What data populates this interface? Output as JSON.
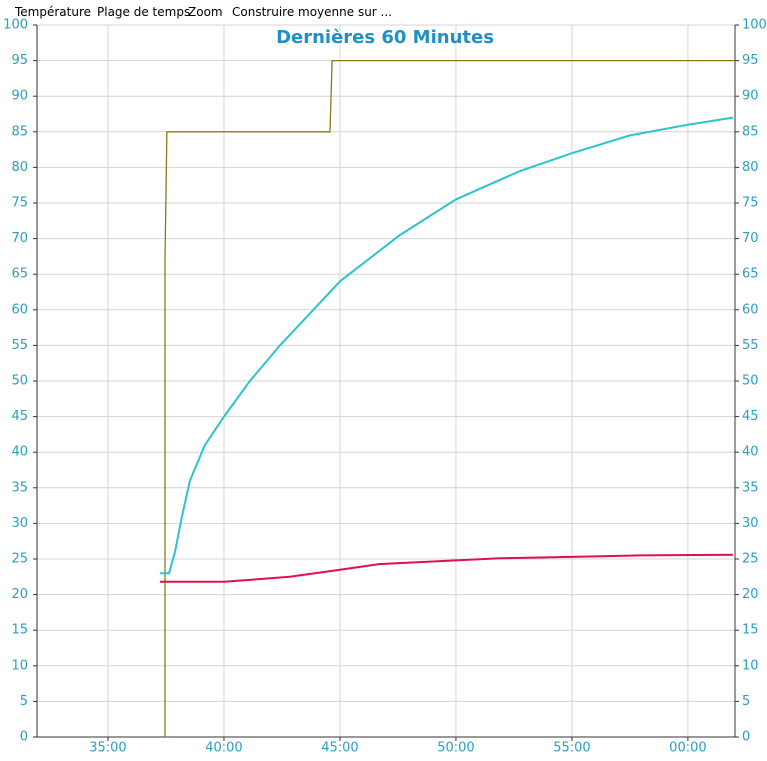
{
  "menu": [
    "Température",
    "Plage de temps",
    "Zoom",
    "Construire moyenne sur ..."
  ],
  "chart_data": {
    "type": "line",
    "title": "Dernières 60 Minutes",
    "xlim": [
      31.94,
      62.03
    ],
    "xticks": [
      {
        "value": 35,
        "label": "35:00"
      },
      {
        "value": 40,
        "label": "40:00"
      },
      {
        "value": 45,
        "label": "45:00"
      },
      {
        "value": 50,
        "label": "50:00"
      },
      {
        "value": 55,
        "label": "55:00"
      },
      {
        "value": 60,
        "label": "00:00"
      }
    ],
    "ylim": [
      0,
      100
    ],
    "yticks": [
      0,
      5,
      10,
      15,
      20,
      25,
      30,
      35,
      40,
      45,
      50,
      55,
      60,
      65,
      70,
      75,
      80,
      85,
      90,
      95,
      100
    ],
    "y2lim": [
      0,
      100
    ],
    "y2ticks": [
      0,
      5,
      10,
      15,
      20,
      25,
      30,
      35,
      40,
      45,
      50,
      55,
      60,
      65,
      70,
      75,
      80,
      85,
      90,
      95,
      100
    ],
    "grid": true,
    "series": [
      {
        "color": "#8b7a1a",
        "x": [
          37.46,
          37.46,
          37.54,
          44.57,
          44.66,
          62.03
        ],
        "values": [
          0,
          67,
          85,
          85,
          95,
          95
        ]
      },
      {
        "color": "#2cc4cc",
        "x": [
          37.24,
          37.63,
          37.89,
          38.19,
          38.53,
          39.18,
          40,
          41.12,
          42.41,
          43.71,
          45,
          47.59,
          50,
          52.76,
          55,
          57.5,
          60,
          61.94
        ],
        "values": [
          23,
          23,
          26,
          31,
          36,
          41,
          45,
          50,
          55,
          59.5,
          64,
          70.5,
          75.5,
          79.5,
          82,
          84.5,
          86,
          87
        ]
      },
      {
        "color": "#e0104a",
        "x": [
          37.24,
          40,
          42.84,
          45,
          46.72,
          50,
          51.9,
          55,
          57.93,
          61.94
        ],
        "values": [
          21.8,
          21.8,
          22.5,
          23.5,
          24.3,
          24.8,
          25.1,
          25.3,
          25.5,
          25.6
        ]
      }
    ]
  }
}
